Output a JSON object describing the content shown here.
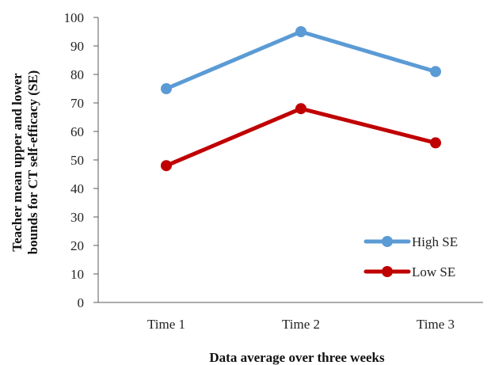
{
  "chart_data": {
    "type": "line",
    "categories": [
      "Time 1",
      "Time 2",
      "Time 3"
    ],
    "series": [
      {
        "name": "High SE",
        "values": [
          75,
          95,
          81
        ],
        "color": "#5B9BD5"
      },
      {
        "name": "Low SE",
        "values": [
          48,
          68,
          56
        ],
        "color": "#C00000"
      }
    ],
    "xlabel": "Data average over three weeks",
    "ylabel_lines": [
      "Teacher mean upper and lower",
      "bounds for CT self-efficacy (SE)"
    ],
    "ylim": [
      0,
      100
    ],
    "yticks": [
      "0",
      "10",
      "20",
      "30",
      "40",
      "50",
      "60",
      "70",
      "80",
      "90",
      "100"
    ],
    "grid": false,
    "legend_position": "bottom-right"
  }
}
